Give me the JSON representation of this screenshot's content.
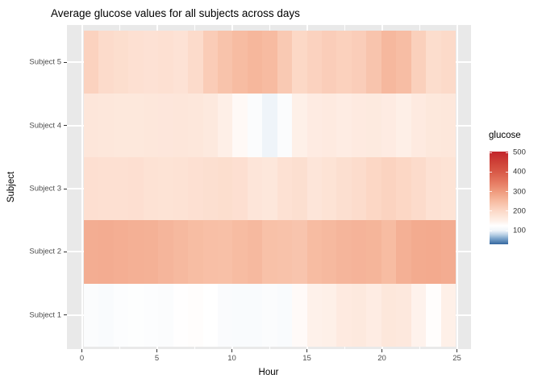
{
  "title": "Average glucose values for all subjects across days",
  "axes": {
    "x": {
      "label": "Hour",
      "ticks": [
        0,
        5,
        10,
        15,
        20,
        25
      ],
      "minor_ticks": [
        2.5,
        7.5,
        12.5,
        17.5,
        22.5
      ],
      "range": [
        0,
        25
      ]
    },
    "y": {
      "label": "Subject",
      "categories_top_to_bottom": [
        "Subject 5",
        "Subject 4",
        "Subject 3",
        "Subject 2",
        "Subject 1"
      ]
    }
  },
  "legend": {
    "title": "glucose",
    "tick_values": [
      500,
      400,
      300,
      200,
      100
    ],
    "bar_value_range": [
      30,
      505
    ]
  },
  "style": {
    "background": "#FFFFFF",
    "panel_bg": "#E9E9E9",
    "grid_color": "#FFFFFF",
    "tick_mark_color": "#333333",
    "tick_label_color": "#4D4D4D",
    "axis_title_color": "#000000",
    "title_color": "#000000"
  },
  "color_scale": {
    "type": "diverging-blue-white-red",
    "anchors": [
      [
        30,
        "#35679F"
      ],
      [
        60,
        "#7FA7CD"
      ],
      [
        80,
        "#BCD2E6"
      ],
      [
        100,
        "#EFF4F9"
      ],
      [
        125,
        "#FFFFFF"
      ],
      [
        150,
        "#FEF0E8"
      ],
      [
        200,
        "#FCD9C8"
      ],
      [
        250,
        "#F7BCA2"
      ],
      [
        300,
        "#EF9B7E"
      ],
      [
        350,
        "#E57860"
      ],
      [
        400,
        "#D95A48"
      ],
      [
        450,
        "#CE4137"
      ],
      [
        505,
        "#C3252B"
      ]
    ]
  },
  "chart_data": {
    "type": "heatmap",
    "title": "Average glucose values for all subjects across days",
    "xlabel": "Hour",
    "ylabel": "Subject",
    "legend_title": "glucose",
    "x_hours": [
      0,
      1,
      2,
      3,
      4,
      5,
      6,
      7,
      8,
      9,
      10,
      11,
      12,
      13,
      14,
      15,
      16,
      17,
      18,
      19,
      20,
      21,
      22,
      23,
      24
    ],
    "series": [
      {
        "name": "Subject 5",
        "values": [
          212,
          196,
          190,
          184,
          182,
          184,
          180,
          196,
          222,
          238,
          250,
          258,
          252,
          228,
          202,
          212,
          220,
          214,
          220,
          236,
          256,
          248,
          216,
          192,
          198
        ]
      },
      {
        "name": "Subject 4",
        "values": [
          172,
          170,
          168,
          168,
          170,
          171,
          172,
          170,
          166,
          152,
          135,
          118,
          100,
          118,
          150,
          160,
          162,
          158,
          162,
          164,
          160,
          152,
          162,
          168,
          170
        ]
      },
      {
        "name": "Subject 3",
        "values": [
          186,
          184,
          185,
          186,
          181,
          179,
          181,
          184,
          188,
          190,
          186,
          174,
          170,
          183,
          188,
          174,
          179,
          188,
          193,
          204,
          210,
          204,
          196,
          183,
          179
        ]
      },
      {
        "name": "Subject 2",
        "values": [
          272,
          274,
          271,
          268,
          266,
          260,
          254,
          249,
          245,
          243,
          250,
          254,
          242,
          239,
          236,
          250,
          254,
          260,
          263,
          261,
          250,
          268,
          276,
          278,
          274
        ]
      },
      {
        "name": "Subject 1",
        "values": [
          118,
          116,
          120,
          122,
          120,
          118,
          126,
          128,
          125,
          117,
          115,
          116,
          118,
          116,
          133,
          148,
          150,
          162,
          165,
          158,
          170,
          167,
          146,
          128,
          150
        ]
      }
    ],
    "value_axis_ticks": [
      100,
      200,
      300,
      400,
      500
    ]
  }
}
